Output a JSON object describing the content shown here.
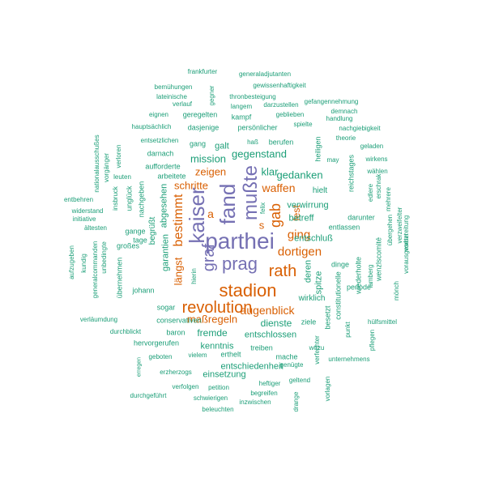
{
  "palette": {
    "teal": "#1b9e77",
    "orange": "#d95f02",
    "purple": "#7570b3"
  },
  "words": [
    {
      "text": "parthei",
      "color": "purple"
    },
    {
      "text": "kaiser",
      "color": "purple"
    },
    {
      "text": "fand",
      "color": "purple"
    },
    {
      "text": "mußte",
      "color": "purple"
    },
    {
      "text": "prag",
      "color": "purple"
    },
    {
      "text": "graf",
      "color": "purple"
    },
    {
      "text": "stadion",
      "color": "orange"
    },
    {
      "text": "revolution",
      "color": "orange"
    },
    {
      "text": "rath",
      "color": "orange"
    },
    {
      "text": "gab",
      "color": "orange"
    },
    {
      "text": "bestimmt",
      "color": "orange"
    },
    {
      "text": "ging",
      "color": "orange"
    },
    {
      "text": "dortigen",
      "color": "orange"
    },
    {
      "text": "augenblick",
      "color": "orange"
    },
    {
      "text": "waffen",
      "color": "orange"
    },
    {
      "text": "zeigen",
      "color": "orange"
    },
    {
      "text": "schritte",
      "color": "orange"
    },
    {
      "text": "maßregeln",
      "color": "orange"
    },
    {
      "text": "längst",
      "color": "orange"
    },
    {
      "text": "fest",
      "color": "orange"
    },
    {
      "text": "a",
      "color": "orange"
    },
    {
      "text": "s",
      "color": "orange"
    },
    {
      "text": "gegenstand",
      "color": "teal"
    },
    {
      "text": "mission",
      "color": "teal"
    },
    {
      "text": "klar",
      "color": "teal"
    },
    {
      "text": "gedanken",
      "color": "teal"
    },
    {
      "text": "galt",
      "color": "teal"
    },
    {
      "text": "verwirrung",
      "color": "teal"
    },
    {
      "text": "betreff",
      "color": "teal"
    },
    {
      "text": "entschluß",
      "color": "teal"
    },
    {
      "text": "fremde",
      "color": "teal"
    },
    {
      "text": "dienste",
      "color": "teal"
    },
    {
      "text": "entschlossen",
      "color": "teal"
    },
    {
      "text": "kenntnis",
      "color": "teal"
    },
    {
      "text": "entschiedenheit",
      "color": "teal"
    },
    {
      "text": "einsetzung",
      "color": "teal"
    },
    {
      "text": "abgesehen",
      "color": "teal"
    },
    {
      "text": "garantien",
      "color": "teal"
    },
    {
      "text": "begrüßt",
      "color": "teal"
    },
    {
      "text": "spitze",
      "color": "teal"
    },
    {
      "text": "deren",
      "color": "teal"
    },
    {
      "text": "wirklich",
      "color": "teal"
    },
    {
      "text": "hielt",
      "color": "teal"
    },
    {
      "text": "frankfurter",
      "color": "teal"
    },
    {
      "text": "generaladjutanten",
      "color": "teal"
    },
    {
      "text": "bemühungen",
      "color": "teal"
    },
    {
      "text": "gewissenhaftigkeit",
      "color": "teal"
    },
    {
      "text": "lateinische",
      "color": "teal"
    },
    {
      "text": "thronbesteigung",
      "color": "teal"
    },
    {
      "text": "verlauf",
      "color": "teal"
    },
    {
      "text": "gegner",
      "color": "teal"
    },
    {
      "text": "gefangennehmung",
      "color": "teal"
    },
    {
      "text": "langem",
      "color": "teal"
    },
    {
      "text": "darzustellen",
      "color": "teal"
    },
    {
      "text": "demnach",
      "color": "teal"
    },
    {
      "text": "eignen",
      "color": "teal"
    },
    {
      "text": "geregelten",
      "color": "teal"
    },
    {
      "text": "kampf",
      "color": "teal"
    },
    {
      "text": "geblieben",
      "color": "teal"
    },
    {
      "text": "handlung",
      "color": "teal"
    },
    {
      "text": "hauptsächlich",
      "color": "teal"
    },
    {
      "text": "dasjenige",
      "color": "teal"
    },
    {
      "text": "persönlicher",
      "color": "teal"
    },
    {
      "text": "spielte",
      "color": "teal"
    },
    {
      "text": "nachgiebigkeit",
      "color": "teal"
    },
    {
      "text": "entsetzlichen",
      "color": "teal"
    },
    {
      "text": "gang",
      "color": "teal"
    },
    {
      "text": "haß",
      "color": "teal"
    },
    {
      "text": "berufen",
      "color": "teal"
    },
    {
      "text": "theorie",
      "color": "teal"
    },
    {
      "text": "geladen",
      "color": "teal"
    },
    {
      "text": "darnach",
      "color": "teal"
    },
    {
      "text": "wirkens",
      "color": "teal"
    },
    {
      "text": "aufforderte",
      "color": "teal"
    },
    {
      "text": "may",
      "color": "teal"
    },
    {
      "text": "arbeitete",
      "color": "teal"
    },
    {
      "text": "wählen",
      "color": "teal"
    },
    {
      "text": "leuten",
      "color": "teal"
    },
    {
      "text": "entbehren",
      "color": "teal"
    },
    {
      "text": "widerstand",
      "color": "teal"
    },
    {
      "text": "initiative",
      "color": "teal"
    },
    {
      "text": "ältesten",
      "color": "teal"
    },
    {
      "text": "gange",
      "color": "teal"
    },
    {
      "text": "tage",
      "color": "teal"
    },
    {
      "text": "großes",
      "color": "teal"
    },
    {
      "text": "johann",
      "color": "teal"
    },
    {
      "text": "sogar",
      "color": "teal"
    },
    {
      "text": "conservativen",
      "color": "teal"
    },
    {
      "text": "baron",
      "color": "teal"
    },
    {
      "text": "hervorgerufen",
      "color": "teal"
    },
    {
      "text": "durchblickt",
      "color": "teal"
    },
    {
      "text": "verläumdung",
      "color": "teal"
    },
    {
      "text": "geboten",
      "color": "teal"
    },
    {
      "text": "vielem",
      "color": "teal"
    },
    {
      "text": "erthelt",
      "color": "teal"
    },
    {
      "text": "treiben",
      "color": "teal"
    },
    {
      "text": "mache",
      "color": "teal"
    },
    {
      "text": "wozu",
      "color": "teal"
    },
    {
      "text": "ziele",
      "color": "teal"
    },
    {
      "text": "genügte",
      "color": "teal"
    },
    {
      "text": "unternehmens",
      "color": "teal"
    },
    {
      "text": "hülfsmittel",
      "color": "teal"
    },
    {
      "text": "erzherzogs",
      "color": "teal"
    },
    {
      "text": "heftiger",
      "color": "teal"
    },
    {
      "text": "geltend",
      "color": "teal"
    },
    {
      "text": "verfolgen",
      "color": "teal"
    },
    {
      "text": "petition",
      "color": "teal"
    },
    {
      "text": "begreifen",
      "color": "teal"
    },
    {
      "text": "durchgeführt",
      "color": "teal"
    },
    {
      "text": "schwierigen",
      "color": "teal"
    },
    {
      "text": "inzwischen",
      "color": "teal"
    },
    {
      "text": "beleuchten",
      "color": "teal"
    },
    {
      "text": "entlassen",
      "color": "teal"
    },
    {
      "text": "darunter",
      "color": "teal"
    },
    {
      "text": "dinge",
      "color": "teal"
    },
    {
      "text": "periode",
      "color": "teal"
    },
    {
      "text": "heiligen",
      "color": "teal"
    },
    {
      "text": "reichstages",
      "color": "teal"
    },
    {
      "text": "unglück",
      "color": "teal"
    },
    {
      "text": "nachgeben",
      "color": "teal"
    },
    {
      "text": "insbruck",
      "color": "teal"
    },
    {
      "text": "verloren",
      "color": "teal"
    },
    {
      "text": "vorgänger",
      "color": "teal"
    },
    {
      "text": "nationalausschußes",
      "color": "teal"
    },
    {
      "text": "kundig",
      "color": "teal"
    },
    {
      "text": "unbedingte",
      "color": "teal"
    },
    {
      "text": "aufzugeben",
      "color": "teal"
    },
    {
      "text": "generalcommanden",
      "color": "teal"
    },
    {
      "text": "übernehmen",
      "color": "teal"
    },
    {
      "text": "hierin",
      "color": "teal"
    },
    {
      "text": "felix",
      "color": "teal"
    },
    {
      "text": "edlere",
      "color": "teal"
    },
    {
      "text": "erschrak",
      "color": "teal"
    },
    {
      "text": "mehrere",
      "color": "teal"
    },
    {
      "text": "vorbereitung",
      "color": "teal"
    },
    {
      "text": "übergehen",
      "color": "teal"
    },
    {
      "text": "verzweifelter",
      "color": "teal"
    },
    {
      "text": "vorausgesetzt",
      "color": "teal"
    },
    {
      "text": "mönch",
      "color": "teal"
    },
    {
      "text": "lamberg",
      "color": "teal"
    },
    {
      "text": "wenzlscomité",
      "color": "teal"
    },
    {
      "text": "wiederholte",
      "color": "teal"
    },
    {
      "text": "constitutionelle",
      "color": "teal"
    },
    {
      "text": "punkt",
      "color": "teal"
    },
    {
      "text": "besetzt",
      "color": "teal"
    },
    {
      "text": "verfechter",
      "color": "teal"
    },
    {
      "text": "vorlagen",
      "color": "teal"
    },
    {
      "text": "drange",
      "color": "teal"
    },
    {
      "text": "pflegen",
      "color": "teal"
    },
    {
      "text": "erregen",
      "color": "teal"
    }
  ]
}
